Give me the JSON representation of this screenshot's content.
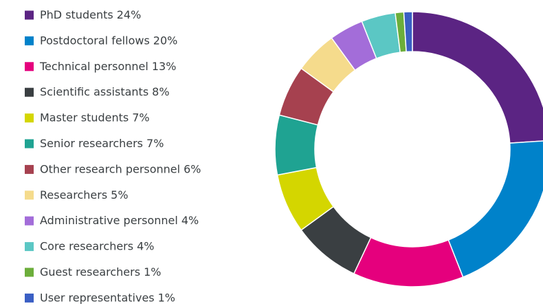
{
  "chart_data": {
    "type": "pie",
    "categories": [
      "PhD students",
      "Postdoctoral fellows",
      "Technical personnel",
      "Scientific assistants",
      "Master students",
      "Senior researchers",
      "Other research personnel",
      "Researchers",
      "Administrative personnel",
      "Core researchers",
      "Guest researchers",
      "User representatives"
    ],
    "values": [
      24,
      20,
      13,
      8,
      7,
      7,
      6,
      5,
      4,
      4,
      1,
      1
    ],
    "value_labels": [
      "24%",
      "20%",
      "13%",
      "8%",
      "7%",
      "7%",
      "6%",
      "5%",
      "4%",
      "4%",
      "1%",
      "1%"
    ],
    "colors": [
      "#5b2483",
      "#0082ca",
      "#e5007d",
      "#3a3f42",
      "#d4d600",
      "#1fa392",
      "#a6414f",
      "#f5db8c",
      "#a36dd9",
      "#5bc7c4",
      "#6cae3b",
      "#3a5fc4"
    ],
    "legend": "left"
  }
}
